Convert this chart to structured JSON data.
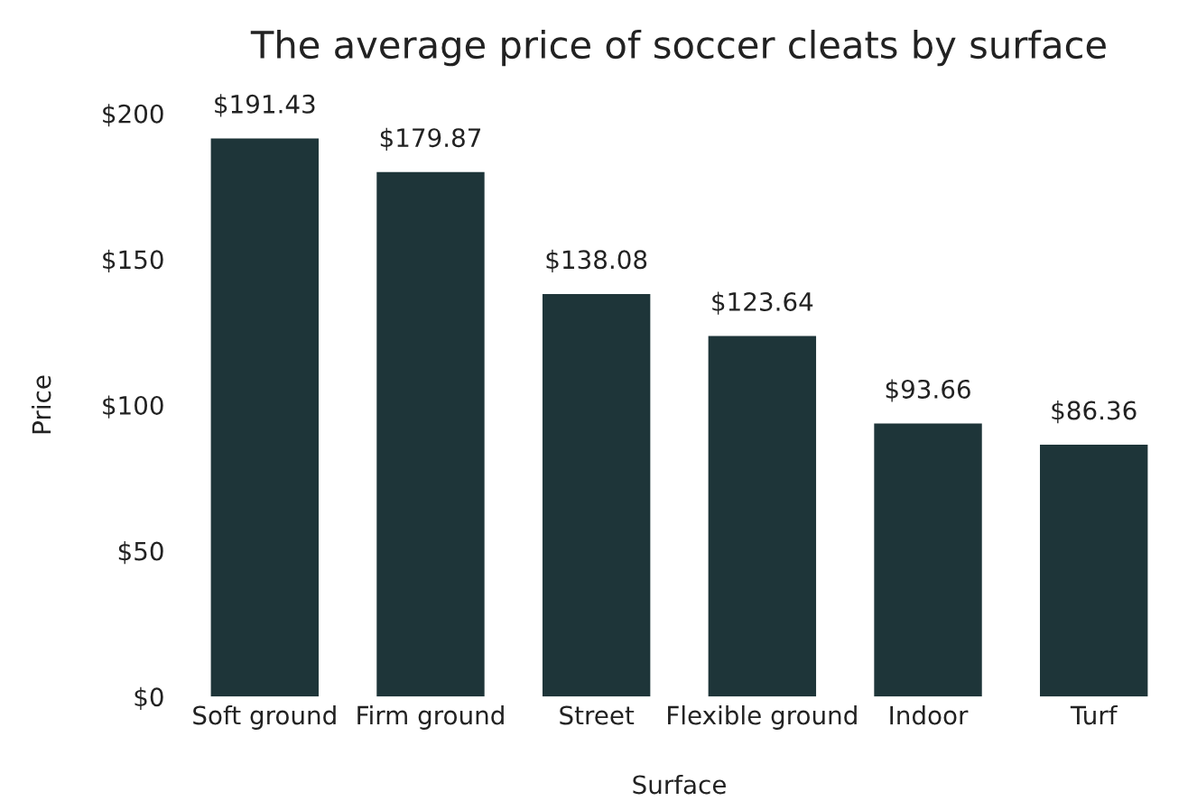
{
  "chart_data": {
    "type": "bar",
    "title": "The average price of soccer cleats by surface",
    "xlabel": "Surface",
    "ylabel": "Price",
    "categories": [
      "Soft ground",
      "Firm ground",
      "Street",
      "Flexible ground",
      "Indoor",
      "Turf"
    ],
    "values": [
      191.43,
      179.87,
      138.08,
      123.64,
      93.66,
      86.36
    ],
    "value_labels": [
      "$191.43",
      "$179.87",
      "$138.08",
      "$123.64",
      "$93.66",
      "$86.36"
    ],
    "color": "#1e3539",
    "ylim": [
      0,
      200
    ],
    "yticks": [
      {
        "value": 0,
        "label": "$0"
      },
      {
        "value": 50,
        "label": "$50"
      },
      {
        "value": 100,
        "label": "$100"
      },
      {
        "value": 150,
        "label": "$150"
      },
      {
        "value": 200,
        "label": "$200"
      }
    ],
    "grid": false,
    "legend": false
  }
}
